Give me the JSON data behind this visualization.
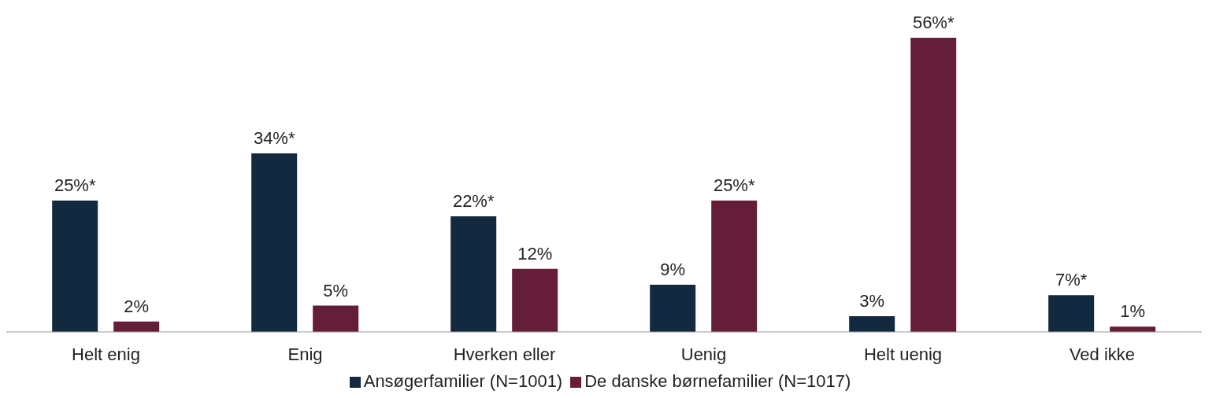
{
  "chart_data": {
    "type": "bar",
    "categories": [
      "Helt enig",
      "Enig",
      "Hverken eller",
      "Uenig",
      "Helt uenig",
      "Ved ikke"
    ],
    "series": [
      {
        "name": "Ansøgerfamilier (N=1001)",
        "color": "#12293f",
        "values": [
          25,
          34,
          22,
          9,
          3,
          7
        ],
        "value_labels": [
          "25%*",
          "34%*",
          "22%*",
          "9%",
          "3%",
          "7%*"
        ]
      },
      {
        "name": "De danske børnefamilier (N=1017)",
        "color": "#641e3a",
        "values": [
          2,
          5,
          12,
          25,
          56,
          1
        ],
        "value_labels": [
          "2%",
          "5%",
          "12%",
          "25%*",
          "56%*",
          "1%"
        ]
      }
    ],
    "legend": "bottom",
    "grid": false
  }
}
